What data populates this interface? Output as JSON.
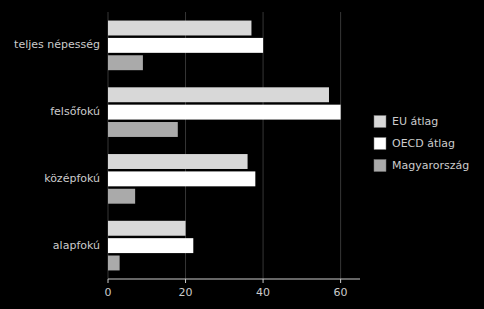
{
  "chart_data": {
    "type": "bar",
    "orientation": "horizontal",
    "categories": [
      "teljes népesség",
      "felsőfokú",
      "középfokú",
      "alapfokú"
    ],
    "series": [
      {
        "name": "EU átlag",
        "color": "#d8d8d8",
        "values": [
          37,
          57,
          36,
          20
        ]
      },
      {
        "name": "OECD átlag",
        "color": "#ffffff",
        "values": [
          40,
          60,
          38,
          22
        ]
      },
      {
        "name": "Magyarország",
        "color": "#aaaaaa",
        "values": [
          9,
          18,
          7,
          3
        ]
      }
    ],
    "xlim": [
      0,
      65
    ],
    "xticks": [
      0,
      20,
      40,
      60
    ],
    "grid": true,
    "legend": "right"
  }
}
